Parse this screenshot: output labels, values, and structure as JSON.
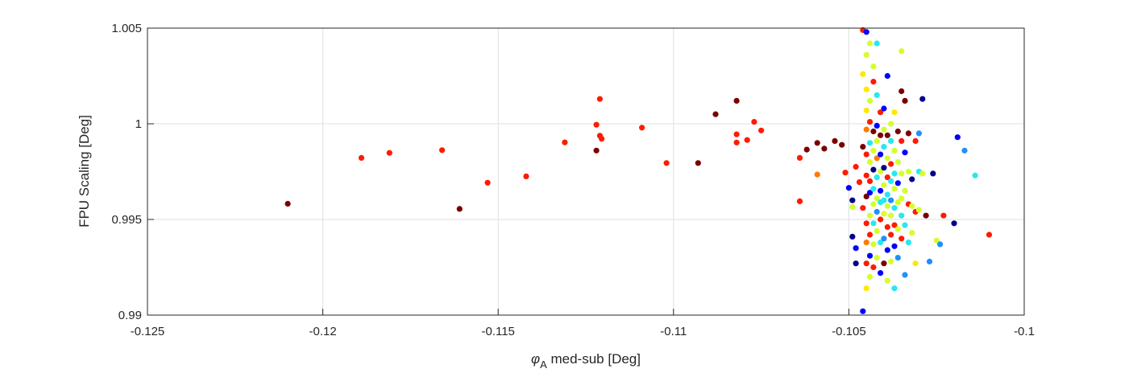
{
  "chart_data": {
    "type": "scatter",
    "title": "",
    "xlabel_symbol": "φ",
    "xlabel_subscript": "A",
    "xlabel_text": " med-sub [Deg]",
    "ylabel": "FPU Scaling [Deg]",
    "xlim": [
      -0.125,
      -0.1
    ],
    "ylim": [
      0.99,
      1.005
    ],
    "xticks": [
      -0.125,
      -0.12,
      -0.115,
      -0.11,
      -0.105,
      -0.1
    ],
    "xtick_labels": [
      "-0.125",
      "-0.12",
      "-0.115",
      "-0.11",
      "-0.105",
      "-0.1"
    ],
    "yticks": [
      0.99,
      0.995,
      1.0,
      1.005
    ],
    "ytick_labels": [
      "0.99",
      "0.995",
      "1",
      "1.005"
    ],
    "grid": true,
    "colormap": "jet",
    "colors": {
      "darkblue": "#00008f",
      "blue": "#0000ff",
      "lightblue": "#1e90ff",
      "cyan": "#27e8ee",
      "yellowgreen": "#d4ff2a",
      "yellow": "#ffe800",
      "orange": "#ff7a00",
      "red": "#ff1a00",
      "darkred": "#7a0000"
    },
    "points": [
      {
        "x": -0.121,
        "y": 0.99582,
        "c": "darkred"
      },
      {
        "x": -0.1189,
        "y": 0.99822,
        "c": "red"
      },
      {
        "x": -0.1181,
        "y": 0.99848,
        "c": "red"
      },
      {
        "x": -0.1166,
        "y": 0.99862,
        "c": "red"
      },
      {
        "x": -0.1161,
        "y": 0.99555,
        "c": "darkred"
      },
      {
        "x": -0.1153,
        "y": 0.99692,
        "c": "red"
      },
      {
        "x": -0.1142,
        "y": 0.99725,
        "c": "red"
      },
      {
        "x": -0.1131,
        "y": 0.99903,
        "c": "red"
      },
      {
        "x": -0.1122,
        "y": 0.9986,
        "c": "darkred"
      },
      {
        "x": -0.1122,
        "y": 0.99995,
        "c": "red"
      },
      {
        "x": -0.1121,
        "y": 1.0013,
        "c": "red"
      },
      {
        "x": -0.1121,
        "y": 0.99938,
        "c": "red"
      },
      {
        "x": -0.11205,
        "y": 0.99922,
        "c": "red"
      },
      {
        "x": -0.1109,
        "y": 0.9998,
        "c": "red"
      },
      {
        "x": -0.1102,
        "y": 0.99795,
        "c": "red"
      },
      {
        "x": -0.1093,
        "y": 0.99795,
        "c": "darkred"
      },
      {
        "x": -0.1088,
        "y": 1.0005,
        "c": "darkred"
      },
      {
        "x": -0.1082,
        "y": 1.0012,
        "c": "darkred"
      },
      {
        "x": -0.1082,
        "y": 0.99945,
        "c": "red"
      },
      {
        "x": -0.1082,
        "y": 0.99902,
        "c": "red"
      },
      {
        "x": -0.1079,
        "y": 0.99915,
        "c": "red"
      },
      {
        "x": -0.1077,
        "y": 1.0001,
        "c": "red"
      },
      {
        "x": -0.1075,
        "y": 0.99965,
        "c": "red"
      },
      {
        "x": -0.1064,
        "y": 0.99822,
        "c": "red"
      },
      {
        "x": -0.1064,
        "y": 0.99595,
        "c": "red"
      },
      {
        "x": -0.1062,
        "y": 0.99865,
        "c": "darkred"
      },
      {
        "x": -0.1059,
        "y": 0.999,
        "c": "darkred"
      },
      {
        "x": -0.1059,
        "y": 0.99735,
        "c": "orange"
      },
      {
        "x": -0.1057,
        "y": 0.9987,
        "c": "darkred"
      },
      {
        "x": -0.1054,
        "y": 0.9991,
        "c": "darkred"
      },
      {
        "x": -0.1052,
        "y": 0.9989,
        "c": "darkred"
      },
      {
        "x": -0.1051,
        "y": 0.99745,
        "c": "red"
      },
      {
        "x": -0.105,
        "y": 0.99665,
        "c": "blue"
      },
      {
        "x": -0.1049,
        "y": 0.996,
        "c": "darkblue"
      },
      {
        "x": -0.1049,
        "y": 0.99565,
        "c": "yellowgreen"
      },
      {
        "x": -0.1049,
        "y": 0.9941,
        "c": "darkblue"
      },
      {
        "x": -0.1048,
        "y": 0.99775,
        "c": "red"
      },
      {
        "x": -0.1048,
        "y": 0.9935,
        "c": "blue"
      },
      {
        "x": -0.1048,
        "y": 0.9927,
        "c": "darkblue"
      },
      {
        "x": -0.1047,
        "y": 0.99695,
        "c": "red"
      },
      {
        "x": -0.1046,
        "y": 1.0049,
        "c": "red"
      },
      {
        "x": -0.1046,
        "y": 1.0026,
        "c": "yellow"
      },
      {
        "x": -0.1046,
        "y": 0.9988,
        "c": "darkred"
      },
      {
        "x": -0.1046,
        "y": 0.9956,
        "c": "red"
      },
      {
        "x": -0.1046,
        "y": 0.9902,
        "c": "blue"
      },
      {
        "x": -0.1045,
        "y": 1.0048,
        "c": "blue"
      },
      {
        "x": -0.1045,
        "y": 1.0036,
        "c": "yellowgreen"
      },
      {
        "x": -0.1045,
        "y": 1.0018,
        "c": "yellow"
      },
      {
        "x": -0.1045,
        "y": 1.0007,
        "c": "yellow"
      },
      {
        "x": -0.1045,
        "y": 0.9997,
        "c": "orange"
      },
      {
        "x": -0.1045,
        "y": 0.9984,
        "c": "red"
      },
      {
        "x": -0.1045,
        "y": 0.9973,
        "c": "red"
      },
      {
        "x": -0.1045,
        "y": 0.9962,
        "c": "darkred"
      },
      {
        "x": -0.1045,
        "y": 0.9948,
        "c": "red"
      },
      {
        "x": -0.1045,
        "y": 0.9938,
        "c": "orange"
      },
      {
        "x": -0.1045,
        "y": 0.9927,
        "c": "red"
      },
      {
        "x": -0.1045,
        "y": 0.9914,
        "c": "yellow"
      },
      {
        "x": -0.1044,
        "y": 1.0042,
        "c": "yellowgreen"
      },
      {
        "x": -0.1044,
        "y": 1.0012,
        "c": "yellowgreen"
      },
      {
        "x": -0.1044,
        "y": 1.0001,
        "c": "red"
      },
      {
        "x": -0.1044,
        "y": 0.999,
        "c": "cyan"
      },
      {
        "x": -0.1044,
        "y": 0.998,
        "c": "yellowgreen"
      },
      {
        "x": -0.1044,
        "y": 0.997,
        "c": "red"
      },
      {
        "x": -0.1044,
        "y": 0.9964,
        "c": "blue"
      },
      {
        "x": -0.1044,
        "y": 0.9952,
        "c": "yellowgreen"
      },
      {
        "x": -0.1044,
        "y": 0.9942,
        "c": "red"
      },
      {
        "x": -0.1044,
        "y": 0.9931,
        "c": "blue"
      },
      {
        "x": -0.1044,
        "y": 0.992,
        "c": "yellowgreen"
      },
      {
        "x": -0.1043,
        "y": 1.003,
        "c": "yellowgreen"
      },
      {
        "x": -0.1043,
        "y": 1.0022,
        "c": "red"
      },
      {
        "x": -0.1043,
        "y": 0.9996,
        "c": "darkred"
      },
      {
        "x": -0.1043,
        "y": 0.9986,
        "c": "yellowgreen"
      },
      {
        "x": -0.1043,
        "y": 0.9976,
        "c": "darkblue"
      },
      {
        "x": -0.1043,
        "y": 0.9966,
        "c": "cyan"
      },
      {
        "x": -0.1043,
        "y": 0.9958,
        "c": "yellowgreen"
      },
      {
        "x": -0.1043,
        "y": 0.9948,
        "c": "cyan"
      },
      {
        "x": -0.1043,
        "y": 0.9937,
        "c": "yellowgreen"
      },
      {
        "x": -0.1043,
        "y": 0.9925,
        "c": "red"
      },
      {
        "x": -0.1042,
        "y": 1.0042,
        "c": "cyan"
      },
      {
        "x": -0.1042,
        "y": 1.0015,
        "c": "cyan"
      },
      {
        "x": -0.1042,
        "y": 0.9999,
        "c": "blue"
      },
      {
        "x": -0.1042,
        "y": 0.9991,
        "c": "yellowgreen"
      },
      {
        "x": -0.1042,
        "y": 0.9982,
        "c": "orange"
      },
      {
        "x": -0.1042,
        "y": 0.9972,
        "c": "cyan"
      },
      {
        "x": -0.1042,
        "y": 0.9961,
        "c": "yellowgreen"
      },
      {
        "x": -0.1042,
        "y": 0.9954,
        "c": "lightblue"
      },
      {
        "x": -0.1042,
        "y": 0.9944,
        "c": "yellowgreen"
      },
      {
        "x": -0.1042,
        "y": 0.993,
        "c": "yellowgreen"
      },
      {
        "x": -0.1041,
        "y": 1.0006,
        "c": "red"
      },
      {
        "x": -0.1041,
        "y": 0.9994,
        "c": "darkred"
      },
      {
        "x": -0.1041,
        "y": 0.9984,
        "c": "blue"
      },
      {
        "x": -0.1041,
        "y": 0.9975,
        "c": "yellowgreen"
      },
      {
        "x": -0.1041,
        "y": 0.9965,
        "c": "blue"
      },
      {
        "x": -0.1041,
        "y": 0.9959,
        "c": "cyan"
      },
      {
        "x": -0.1041,
        "y": 0.995,
        "c": "red"
      },
      {
        "x": -0.1041,
        "y": 0.9938,
        "c": "cyan"
      },
      {
        "x": -0.1041,
        "y": 0.9922,
        "c": "blue"
      },
      {
        "x": -0.104,
        "y": 1.0008,
        "c": "blue"
      },
      {
        "x": -0.104,
        "y": 0.9997,
        "c": "yellowgreen"
      },
      {
        "x": -0.104,
        "y": 0.9988,
        "c": "cyan"
      },
      {
        "x": -0.104,
        "y": 0.9977,
        "c": "darkblue"
      },
      {
        "x": -0.104,
        "y": 0.9968,
        "c": "yellowgreen"
      },
      {
        "x": -0.104,
        "y": 0.996,
        "c": "cyan"
      },
      {
        "x": -0.104,
        "y": 0.9953,
        "c": "yellowgreen"
      },
      {
        "x": -0.104,
        "y": 0.994,
        "c": "lightblue"
      },
      {
        "x": -0.104,
        "y": 0.9927,
        "c": "darkred"
      },
      {
        "x": -0.1039,
        "y": 1.0025,
        "c": "blue"
      },
      {
        "x": -0.1039,
        "y": 0.9994,
        "c": "darkred"
      },
      {
        "x": -0.1039,
        "y": 0.9982,
        "c": "yellowgreen"
      },
      {
        "x": -0.1039,
        "y": 0.9972,
        "c": "red"
      },
      {
        "x": -0.1039,
        "y": 0.9963,
        "c": "cyan"
      },
      {
        "x": -0.1039,
        "y": 0.9957,
        "c": "yellowgreen"
      },
      {
        "x": -0.1039,
        "y": 0.9946,
        "c": "red"
      },
      {
        "x": -0.1039,
        "y": 0.9934,
        "c": "blue"
      },
      {
        "x": -0.1039,
        "y": 0.9918,
        "c": "yellowgreen"
      },
      {
        "x": -0.1038,
        "y": 1.0,
        "c": "yellowgreen"
      },
      {
        "x": -0.1038,
        "y": 0.9991,
        "c": "cyan"
      },
      {
        "x": -0.1038,
        "y": 0.9979,
        "c": "red"
      },
      {
        "x": -0.1038,
        "y": 0.997,
        "c": "cyan"
      },
      {
        "x": -0.1038,
        "y": 0.996,
        "c": "lightblue"
      },
      {
        "x": -0.1038,
        "y": 0.9952,
        "c": "yellowgreen"
      },
      {
        "x": -0.1038,
        "y": 0.9942,
        "c": "red"
      },
      {
        "x": -0.1038,
        "y": 0.9928,
        "c": "yellowgreen"
      },
      {
        "x": -0.1037,
        "y": 1.0006,
        "c": "yellow"
      },
      {
        "x": -0.1037,
        "y": 0.9986,
        "c": "yellowgreen"
      },
      {
        "x": -0.1037,
        "y": 0.9974,
        "c": "cyan"
      },
      {
        "x": -0.1037,
        "y": 0.9966,
        "c": "yellowgreen"
      },
      {
        "x": -0.1037,
        "y": 0.9956,
        "c": "cyan"
      },
      {
        "x": -0.1037,
        "y": 0.9947,
        "c": "red"
      },
      {
        "x": -0.1037,
        "y": 0.9936,
        "c": "blue"
      },
      {
        "x": -0.1037,
        "y": 0.9914,
        "c": "cyan"
      },
      {
        "x": -0.1036,
        "y": 0.9996,
        "c": "darkred"
      },
      {
        "x": -0.1036,
        "y": 0.998,
        "c": "yellowgreen"
      },
      {
        "x": -0.1036,
        "y": 0.9969,
        "c": "blue"
      },
      {
        "x": -0.1036,
        "y": 0.9959,
        "c": "yellowgreen"
      },
      {
        "x": -0.1036,
        "y": 0.9945,
        "c": "yellowgreen"
      },
      {
        "x": -0.1036,
        "y": 0.993,
        "c": "lightblue"
      },
      {
        "x": -0.1035,
        "y": 1.0038,
        "c": "yellowgreen"
      },
      {
        "x": -0.1035,
        "y": 1.0017,
        "c": "darkred"
      },
      {
        "x": -0.1035,
        "y": 0.9991,
        "c": "red"
      },
      {
        "x": -0.1035,
        "y": 0.9974,
        "c": "yellowgreen"
      },
      {
        "x": -0.1035,
        "y": 0.9961,
        "c": "yellowgreen"
      },
      {
        "x": -0.1035,
        "y": 0.9952,
        "c": "cyan"
      },
      {
        "x": -0.1035,
        "y": 0.994,
        "c": "red"
      },
      {
        "x": -0.1034,
        "y": 1.0012,
        "c": "darkred"
      },
      {
        "x": -0.1034,
        "y": 0.9985,
        "c": "blue"
      },
      {
        "x": -0.1034,
        "y": 0.9965,
        "c": "yellowgreen"
      },
      {
        "x": -0.1034,
        "y": 0.9947,
        "c": "cyan"
      },
      {
        "x": -0.1034,
        "y": 0.9921,
        "c": "lightblue"
      },
      {
        "x": -0.1033,
        "y": 0.9995,
        "c": "darkred"
      },
      {
        "x": -0.1033,
        "y": 0.9975,
        "c": "yellowgreen"
      },
      {
        "x": -0.1033,
        "y": 0.9958,
        "c": "red"
      },
      {
        "x": -0.1033,
        "y": 0.9938,
        "c": "cyan"
      },
      {
        "x": -0.1032,
        "y": 0.9971,
        "c": "darkblue"
      },
      {
        "x": -0.1032,
        "y": 0.9957,
        "c": "yellowgreen"
      },
      {
        "x": -0.1032,
        "y": 0.9943,
        "c": "yellowgreen"
      },
      {
        "x": -0.1031,
        "y": 0.9991,
        "c": "red"
      },
      {
        "x": -0.1031,
        "y": 0.9954,
        "c": "red"
      },
      {
        "x": -0.1031,
        "y": 0.9927,
        "c": "yellow"
      },
      {
        "x": -0.103,
        "y": 0.9995,
        "c": "lightblue"
      },
      {
        "x": -0.103,
        "y": 0.9975,
        "c": "cyan"
      },
      {
        "x": -0.103,
        "y": 0.9955,
        "c": "yellowgreen"
      },
      {
        "x": -0.1029,
        "y": 1.0013,
        "c": "darkblue"
      },
      {
        "x": -0.1029,
        "y": 0.9974,
        "c": "yellowgreen"
      },
      {
        "x": -0.1028,
        "y": 0.9952,
        "c": "darkred"
      },
      {
        "x": -0.1027,
        "y": 0.9928,
        "c": "lightblue"
      },
      {
        "x": -0.1026,
        "y": 0.9974,
        "c": "darkblue"
      },
      {
        "x": -0.1025,
        "y": 0.9939,
        "c": "yellowgreen"
      },
      {
        "x": -0.1024,
        "y": 0.9937,
        "c": "lightblue"
      },
      {
        "x": -0.1023,
        "y": 0.9952,
        "c": "red"
      },
      {
        "x": -0.102,
        "y": 0.9948,
        "c": "darkblue"
      },
      {
        "x": -0.1019,
        "y": 0.9993,
        "c": "blue"
      },
      {
        "x": -0.1017,
        "y": 0.9986,
        "c": "lightblue"
      },
      {
        "x": -0.1014,
        "y": 0.9973,
        "c": "cyan"
      },
      {
        "x": -0.101,
        "y": 0.9942,
        "c": "red"
      }
    ]
  }
}
